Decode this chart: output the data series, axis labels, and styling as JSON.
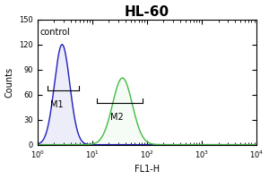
{
  "title": "HL-60",
  "xlabel": "FL1-H",
  "ylabel": "Counts",
  "xlim_log": [
    0,
    4
  ],
  "ylim": [
    0,
    150
  ],
  "yticks": [
    0,
    30,
    60,
    90,
    120,
    150
  ],
  "control_label": "control",
  "control_color": "#2222bb",
  "sample_color": "#44bb44",
  "m1_label": "M1",
  "m2_label": "M2",
  "title_fontsize": 11,
  "label_fontsize": 7,
  "tick_fontsize": 6,
  "control_peak_log": 0.45,
  "control_sigma_log": 0.14,
  "control_peak_height": 120,
  "sample_peak_log": 1.55,
  "sample_sigma_log": 0.18,
  "sample_peak_height": 80,
  "m1_x1_log": 0.18,
  "m1_x2_log": 0.75,
  "m1_y": 65,
  "m2_x1_log": 1.08,
  "m2_x2_log": 1.92,
  "m2_y": 50
}
